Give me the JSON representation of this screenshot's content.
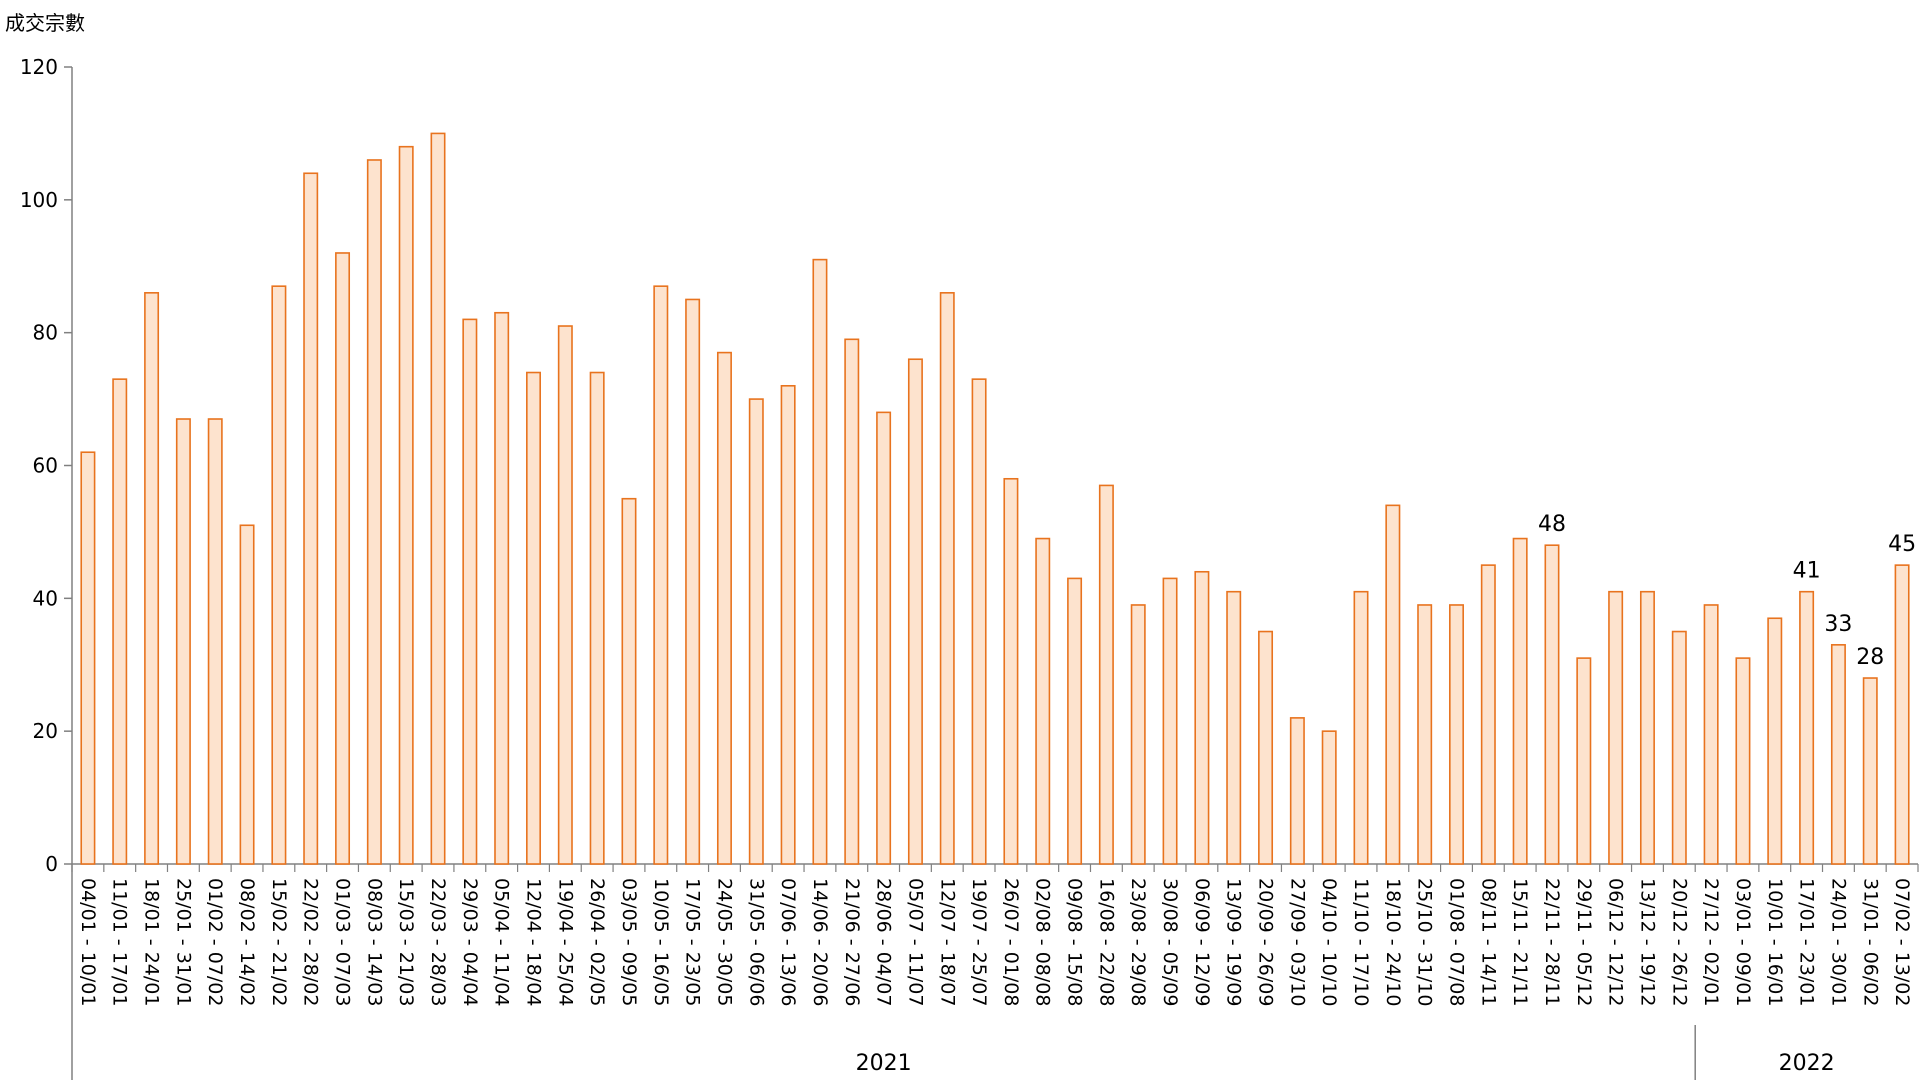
{
  "chart_data": {
    "type": "bar",
    "ylabel": "成交宗數",
    "ylim": [
      0,
      120
    ],
    "yticks": [
      0,
      20,
      40,
      60,
      80,
      100,
      120
    ],
    "categories": [
      "04/01 - 10/01",
      "11/01 - 17/01",
      "18/01 - 24/01",
      "25/01 - 31/01",
      "01/02 - 07/02",
      "08/02 - 14/02",
      "15/02 - 21/02",
      "22/02 - 28/02",
      "01/03 - 07/03",
      "08/03 - 14/03",
      "15/03 - 21/03",
      "22/03 - 28/03",
      "29/03 - 04/04",
      "05/04 - 11/04",
      "12/04 - 18/04",
      "19/04 - 25/04",
      "26/04 - 02/05",
      "03/05 - 09/05",
      "10/05 - 16/05",
      "17/05 - 23/05",
      "24/05 - 30/05",
      "31/05 - 06/06",
      "07/06 - 13/06",
      "14/06 - 20/06",
      "21/06 - 27/06",
      "28/06 - 04/07",
      "05/07 - 11/07",
      "12/07 - 18/07",
      "19/07 - 25/07",
      "26/07 - 01/08",
      "02/08 - 08/08",
      "09/08 - 15/08",
      "16/08 - 22/08",
      "23/08 - 29/08",
      "30/08 - 05/09",
      "06/09 - 12/09",
      "13/09 - 19/09",
      "20/09 - 26/09",
      "27/09 - 03/10",
      "04/10 - 10/10",
      "11/10 - 17/10",
      "18/10 - 24/10",
      "25/10 - 31/10",
      "01/08 - 07/08",
      "08/11 - 14/11",
      "15/11 - 21/11",
      "22/11 - 28/11",
      "29/11 - 05/12",
      "06/12 - 12/12",
      "13/12 - 19/12",
      "20/12 - 26/12",
      "27/12 - 02/01",
      "03/01 - 09/01",
      "10/01 - 16/01",
      "17/01 - 23/01",
      "24/01 - 30/01",
      "31/01 - 06/02",
      "07/02 - 13/02"
    ],
    "values": [
      62,
      73,
      86,
      67,
      67,
      51,
      87,
      104,
      92,
      106,
      108,
      110,
      82,
      83,
      74,
      81,
      74,
      55,
      87,
      85,
      77,
      70,
      72,
      91,
      79,
      68,
      76,
      86,
      73,
      58,
      49,
      43,
      57,
      39,
      43,
      44,
      41,
      35,
      22,
      20,
      41,
      54,
      39,
      39,
      45,
      49,
      48,
      31,
      41,
      41,
      35,
      39,
      31,
      37,
      41,
      33,
      28,
      45
    ],
    "data_labels": [
      {
        "index": 46,
        "text": "48"
      },
      {
        "index": 54,
        "text": "41"
      },
      {
        "index": 55,
        "text": "33"
      },
      {
        "index": 56,
        "text": "28"
      },
      {
        "index": 57,
        "text": "45"
      }
    ],
    "groups": [
      {
        "label": "2021",
        "start": 0,
        "end": 50
      },
      {
        "label": "2022",
        "start": 51,
        "end": 57
      }
    ],
    "colors": {
      "bar_fill": "#FDE3CE",
      "bar_stroke": "#E8731E",
      "axis": "#808080"
    }
  }
}
